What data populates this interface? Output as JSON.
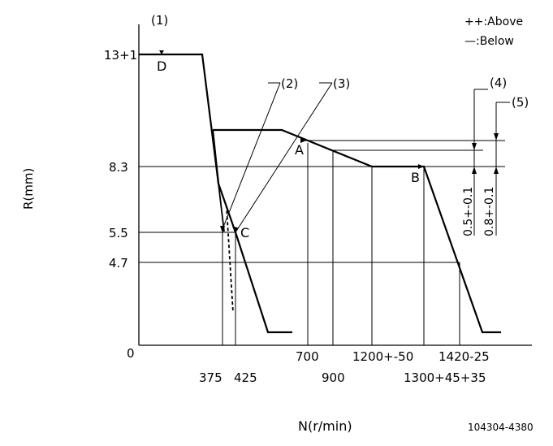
{
  "annotations": {
    "callout_1": "(1)",
    "callout_2": "(2)",
    "callout_3": "(3)",
    "callout_4": "(4)",
    "callout_5": "(5)"
  },
  "legend": {
    "above": "++:Above",
    "below": "—:Below"
  },
  "axes": {
    "y_label": "R(mm)",
    "x_label": "N(r/min)",
    "y_ticks": [
      "13+1",
      "8.3",
      "5.5",
      "4.7",
      "0"
    ],
    "x_ticks": [
      "375",
      "425",
      "700",
      "900",
      "1200+-50",
      "1300+45+35",
      "1420-25"
    ]
  },
  "points": {
    "A": "A",
    "B": "B",
    "C": "C",
    "D": "D"
  },
  "tolerances": {
    "t4": "0.5+-0.1",
    "t5": "0.8+-0.1"
  },
  "figure_id": "104304-4380"
}
